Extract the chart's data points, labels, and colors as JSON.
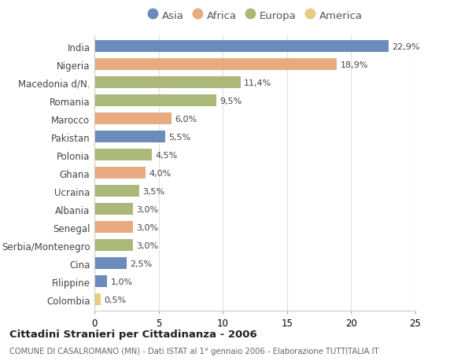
{
  "countries": [
    "India",
    "Nigeria",
    "Macedonia d/N.",
    "Romania",
    "Marocco",
    "Pakistan",
    "Polonia",
    "Ghana",
    "Ucraina",
    "Albania",
    "Senegal",
    "Serbia/Montenegro",
    "Cina",
    "Filippine",
    "Colombia"
  ],
  "values": [
    22.9,
    18.9,
    11.4,
    9.5,
    6.0,
    5.5,
    4.5,
    4.0,
    3.5,
    3.0,
    3.0,
    3.0,
    2.5,
    1.0,
    0.5
  ],
  "labels": [
    "22,9%",
    "18,9%",
    "11,4%",
    "9,5%",
    "6,0%",
    "5,5%",
    "4,5%",
    "4,0%",
    "3,5%",
    "3,0%",
    "3,0%",
    "3,0%",
    "2,5%",
    "1,0%",
    "0,5%"
  ],
  "continents": [
    "Asia",
    "Africa",
    "Europa",
    "Europa",
    "Africa",
    "Asia",
    "Europa",
    "Africa",
    "Europa",
    "Europa",
    "Africa",
    "Europa",
    "Asia",
    "Asia",
    "America"
  ],
  "colors": {
    "Asia": "#6b8cba",
    "Africa": "#e8aa80",
    "Europa": "#aab87a",
    "America": "#e8cc80"
  },
  "legend_order": [
    "Asia",
    "Africa",
    "Europa",
    "America"
  ],
  "title": "Cittadini Stranieri per Cittadinanza - 2006",
  "subtitle": "COMUNE DI CASALROMANO (MN) - Dati ISTAT al 1° gennaio 2006 - Elaborazione TUTTITALIA.IT",
  "xlim": [
    0,
    25
  ],
  "xticks": [
    0,
    5,
    10,
    15,
    20,
    25
  ],
  "bg_color": "#ffffff",
  "grid_color": "#e0e0e0"
}
